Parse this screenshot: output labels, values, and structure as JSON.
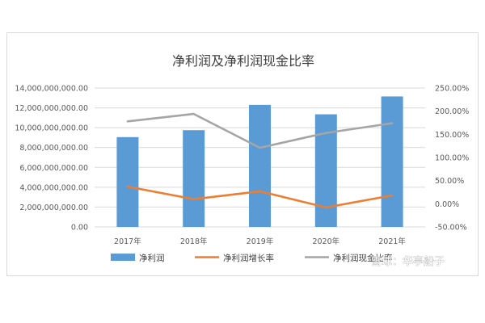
{
  "chart_data": {
    "type": "bar",
    "title": "净利润及净利润现金比率",
    "categories": [
      "2017年",
      "2018年",
      "2019年",
      "2020年",
      "2021年"
    ],
    "series": [
      {
        "name": "净利润",
        "type": "bar",
        "axis": "left",
        "color": "#5b9bd5",
        "values": [
          9050000000,
          9750000000,
          12300000000,
          11350000000,
          13150000000
        ]
      },
      {
        "name": "净利润增长率",
        "type": "line",
        "axis": "right",
        "color": "#ed7d31",
        "values": [
          0.37,
          0.1,
          0.27,
          -0.08,
          0.18
        ]
      },
      {
        "name": "净利润现金比率",
        "type": "line",
        "axis": "right",
        "color": "#a5a5a5",
        "values": [
          1.78,
          1.94,
          1.21,
          1.53,
          1.74
        ]
      }
    ],
    "y_left": {
      "min": 0,
      "max": 14000000000,
      "ticks": [
        "0.00",
        "2,000,000,000.00",
        "4,000,000,000.00",
        "6,000,000,000.00",
        "8,000,000,000.00",
        "10,000,000,000.00",
        "12,000,000,000.00",
        "14,000,000,000.00"
      ]
    },
    "y_right": {
      "min": -0.5,
      "max": 2.5,
      "ticks": [
        "-50.00%",
        "0.00%",
        "50.00%",
        "100.00%",
        "150.00%",
        "200.00%",
        "250.00%"
      ]
    },
    "grid": true,
    "legend": "bottom"
  },
  "watermark": {
    "text": "雪球：华亭船子"
  }
}
